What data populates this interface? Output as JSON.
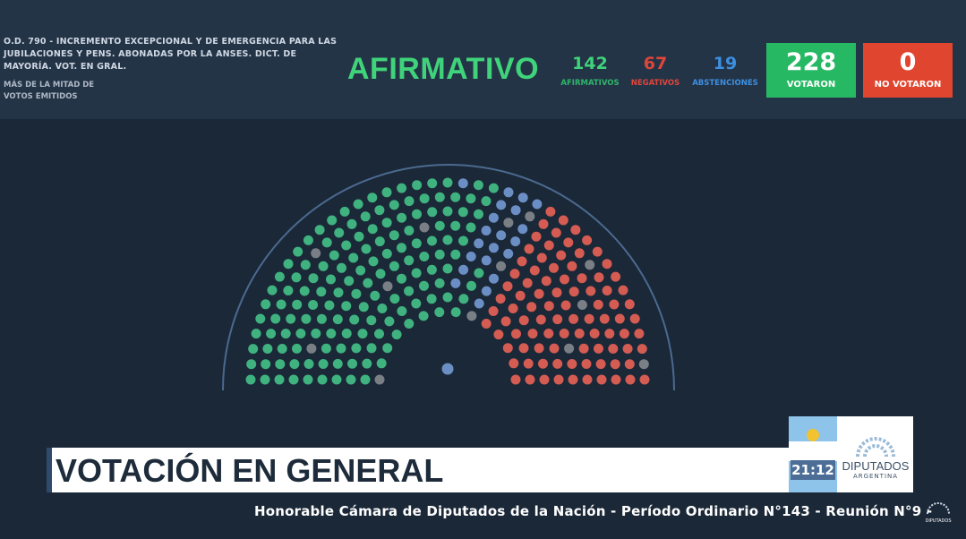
{
  "motion": {
    "lines": [
      "O.D. 790 - INCREMENTO EXCEPCIONAL Y DE EMERGENCIA PARA LAS",
      "JUBILACIONES Y PENS. ABONADAS POR LA ANSES. DICT. DE",
      "MAYORÍA. VOT. EN GRAL."
    ],
    "majority_lines": [
      "MÁS DE LA MITAD DE",
      "VOTOS EMITIDOS"
    ]
  },
  "result": {
    "label": "AFIRMATIVO",
    "color": "#3fd37a"
  },
  "tallies": {
    "afirmativos": {
      "value": "142",
      "label": "AFIRMATIVOS",
      "color": "#3fd37a"
    },
    "negativos": {
      "value": "67",
      "label": "NEGATIVOS",
      "color": "#e0453a"
    },
    "abstenciones": {
      "value": "19",
      "label": "ABSTENCIONES",
      "color": "#3d8fe0"
    }
  },
  "totals": {
    "votaron": {
      "value": "228",
      "label": "VOTARON",
      "color": "#27b863"
    },
    "no_votaron": {
      "value": "0",
      "label": "NO VOTARON",
      "color": "#e0452f"
    }
  },
  "hemicycle": {
    "rows": 10,
    "seat_colors": {
      "afirmativo": "#3fb27f",
      "negativo": "#d45c53",
      "abstencion": "#6b8fc4",
      "ausente": "#7a7f86"
    },
    "president_seat": "abstencion"
  },
  "lower_third": {
    "title": "VOTACIÓN EN GENERAL",
    "clock": "21:12",
    "logo_text": "DIPUTADOS",
    "logo_subtext": "ARGENTINA"
  },
  "ticker": {
    "text": "Honorable Cámara de Diputados de la Nación - Período Ordinario N°143 - Reunión N°9 -"
  },
  "watermark": {
    "text": "DIPUTADOS"
  }
}
